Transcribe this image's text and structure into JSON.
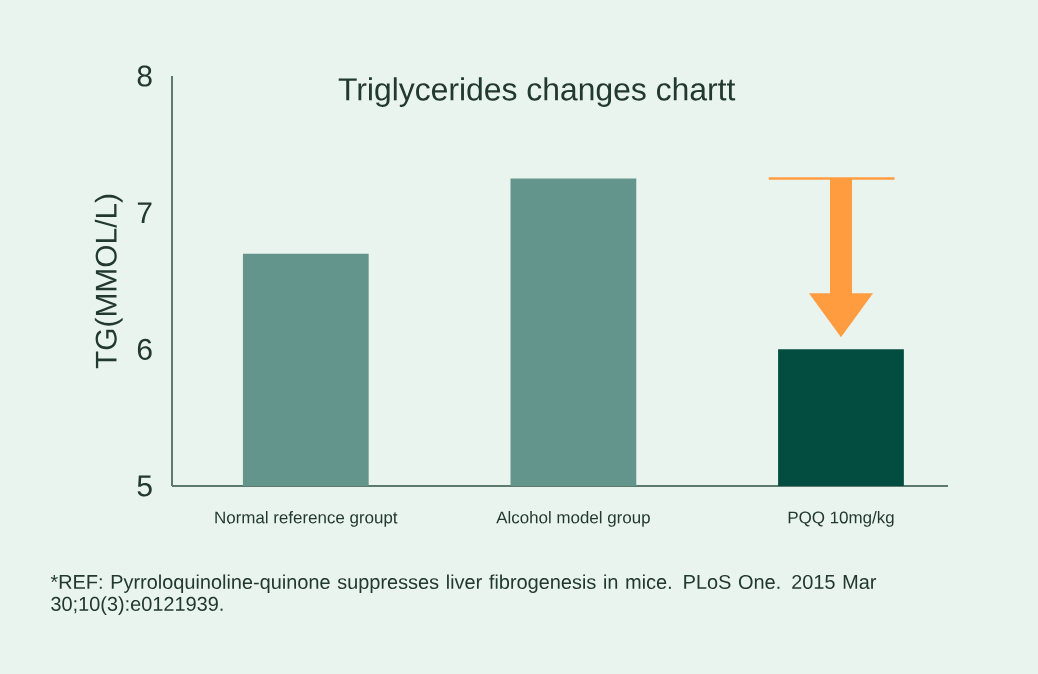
{
  "chart_data": {
    "type": "bar",
    "title": "Triglycerides changes chartt",
    "ylabel": "TG(MMOL/L)",
    "categories": [
      "Normal reference groupt",
      "Alcohol model group",
      "PQQ 10mg/kg"
    ],
    "values": [
      6.7,
      7.25,
      6.0
    ],
    "colors": [
      "#64958c",
      "#64958c",
      "#024d40"
    ],
    "ylim": [
      5,
      8
    ],
    "yticks": [
      5,
      6,
      7,
      8
    ],
    "annotations": [
      "*REF: Pyrroloquinoline-quinone suppresses liver fibrogenesis in mice. PLoS One. 2015 Mar 30;10(3):e0121939."
    ]
  }
}
